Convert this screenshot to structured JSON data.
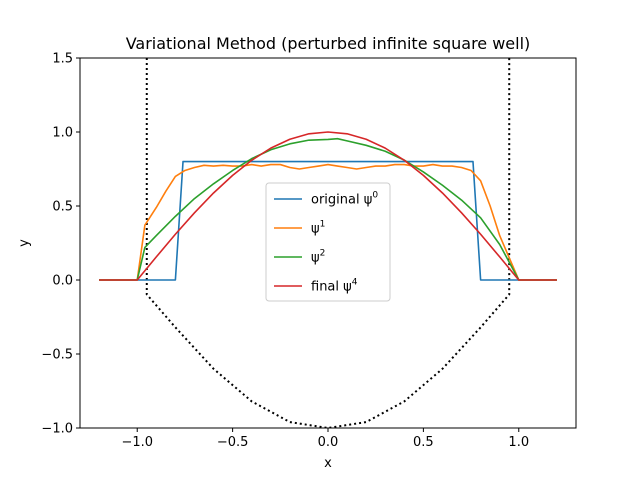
{
  "chart_data": {
    "type": "line",
    "title": "Variational Method (perturbed infinite square well)",
    "xlabel": "x",
    "ylabel": "y",
    "xlim": [
      -1.3,
      1.3
    ],
    "ylim": [
      -1.0,
      1.5
    ],
    "x_ticks": [
      -1.0,
      -0.5,
      0.0,
      0.5,
      1.0
    ],
    "x_tick_labels": [
      "−1.0",
      "−0.5",
      "0.0",
      "0.5",
      "1.0"
    ],
    "y_ticks": [
      -1.0,
      -0.5,
      0.0,
      0.5,
      1.0,
      1.5
    ],
    "y_tick_labels": [
      "−1.0",
      "−0.5",
      "0.0",
      "0.5",
      "1.0",
      "1.5"
    ],
    "grid": false,
    "legend_position": "center",
    "potential": {
      "style": "dotted",
      "color": "#000000",
      "wall_x": [
        -0.95,
        0.95
      ],
      "points": [
        [
          -0.95,
          1.5
        ],
        [
          -0.95,
          -0.0975
        ],
        [
          -0.8,
          -0.32
        ],
        [
          -0.6,
          -0.6
        ],
        [
          -0.4,
          -0.82
        ],
        [
          -0.2,
          -0.96
        ],
        [
          0.0,
          -1.0
        ],
        [
          0.2,
          -0.96
        ],
        [
          0.4,
          -0.82
        ],
        [
          0.6,
          -0.6
        ],
        [
          0.8,
          -0.32
        ],
        [
          0.95,
          -0.0975
        ],
        [
          0.95,
          1.5
        ]
      ]
    },
    "series": [
      {
        "name": "original ψ⁰",
        "label_base": "original ψ",
        "label_sup": "0",
        "color": "#1f77b4",
        "points": [
          [
            -1.2,
            0.0
          ],
          [
            -0.8,
            0.0
          ],
          [
            -0.76,
            0.8
          ],
          [
            0.76,
            0.8
          ],
          [
            0.8,
            0.0
          ],
          [
            1.2,
            0.0
          ]
        ]
      },
      {
        "name": "ψ¹",
        "label_base": "ψ",
        "label_sup": "1",
        "color": "#ff7f0e",
        "points": [
          [
            -1.2,
            0.0
          ],
          [
            -1.0,
            0.0
          ],
          [
            -0.96,
            0.37
          ],
          [
            -0.9,
            0.49
          ],
          [
            -0.85,
            0.6
          ],
          [
            -0.8,
            0.7
          ],
          [
            -0.75,
            0.74
          ],
          [
            -0.7,
            0.76
          ],
          [
            -0.65,
            0.775
          ],
          [
            -0.6,
            0.77
          ],
          [
            -0.55,
            0.775
          ],
          [
            -0.5,
            0.77
          ],
          [
            -0.45,
            0.77
          ],
          [
            -0.4,
            0.78
          ],
          [
            -0.35,
            0.77
          ],
          [
            -0.3,
            0.78
          ],
          [
            -0.25,
            0.78
          ],
          [
            -0.2,
            0.76
          ],
          [
            -0.15,
            0.75
          ],
          [
            -0.1,
            0.76
          ],
          [
            -0.05,
            0.77
          ],
          [
            0.0,
            0.78
          ],
          [
            0.05,
            0.77
          ],
          [
            0.1,
            0.76
          ],
          [
            0.15,
            0.75
          ],
          [
            0.2,
            0.76
          ],
          [
            0.25,
            0.77
          ],
          [
            0.3,
            0.77
          ],
          [
            0.35,
            0.78
          ],
          [
            0.4,
            0.78
          ],
          [
            0.45,
            0.77
          ],
          [
            0.5,
            0.77
          ],
          [
            0.55,
            0.78
          ],
          [
            0.6,
            0.77
          ],
          [
            0.65,
            0.77
          ],
          [
            0.7,
            0.76
          ],
          [
            0.75,
            0.74
          ],
          [
            0.8,
            0.67
          ],
          [
            0.85,
            0.5
          ],
          [
            0.9,
            0.3
          ],
          [
            1.0,
            0.0
          ],
          [
            1.2,
            0.0
          ]
        ]
      },
      {
        "name": "ψ²",
        "label_base": "ψ",
        "label_sup": "2",
        "color": "#2ca02c",
        "points": [
          [
            -1.2,
            0.0
          ],
          [
            -1.0,
            0.0
          ],
          [
            -0.96,
            0.22
          ],
          [
            -0.9,
            0.3
          ],
          [
            -0.8,
            0.43
          ],
          [
            -0.7,
            0.55
          ],
          [
            -0.6,
            0.65
          ],
          [
            -0.5,
            0.74
          ],
          [
            -0.4,
            0.82
          ],
          [
            -0.3,
            0.88
          ],
          [
            -0.2,
            0.92
          ],
          [
            -0.1,
            0.945
          ],
          [
            0.0,
            0.95
          ],
          [
            0.05,
            0.955
          ],
          [
            0.1,
            0.94
          ],
          [
            0.2,
            0.91
          ],
          [
            0.3,
            0.87
          ],
          [
            0.4,
            0.81
          ],
          [
            0.5,
            0.73
          ],
          [
            0.6,
            0.64
          ],
          [
            0.7,
            0.54
          ],
          [
            0.8,
            0.42
          ],
          [
            0.9,
            0.24
          ],
          [
            1.0,
            0.0
          ],
          [
            1.2,
            0.0
          ]
        ]
      },
      {
        "name": "final ψ⁴",
        "label_base": "final ψ",
        "label_sup": "4",
        "color": "#d62728",
        "points": [
          [
            -1.2,
            0.0
          ],
          [
            -1.0,
            0.0
          ],
          [
            -0.9,
            0.156
          ],
          [
            -0.8,
            0.309
          ],
          [
            -0.7,
            0.454
          ],
          [
            -0.6,
            0.588
          ],
          [
            -0.5,
            0.707
          ],
          [
            -0.4,
            0.809
          ],
          [
            -0.3,
            0.891
          ],
          [
            -0.2,
            0.951
          ],
          [
            -0.1,
            0.988
          ],
          [
            0.0,
            1.0
          ],
          [
            0.1,
            0.988
          ],
          [
            0.2,
            0.951
          ],
          [
            0.3,
            0.891
          ],
          [
            0.4,
            0.809
          ],
          [
            0.5,
            0.707
          ],
          [
            0.6,
            0.588
          ],
          [
            0.7,
            0.454
          ],
          [
            0.8,
            0.309
          ],
          [
            0.9,
            0.156
          ],
          [
            1.0,
            0.0
          ],
          [
            1.2,
            0.0
          ]
        ]
      }
    ]
  }
}
